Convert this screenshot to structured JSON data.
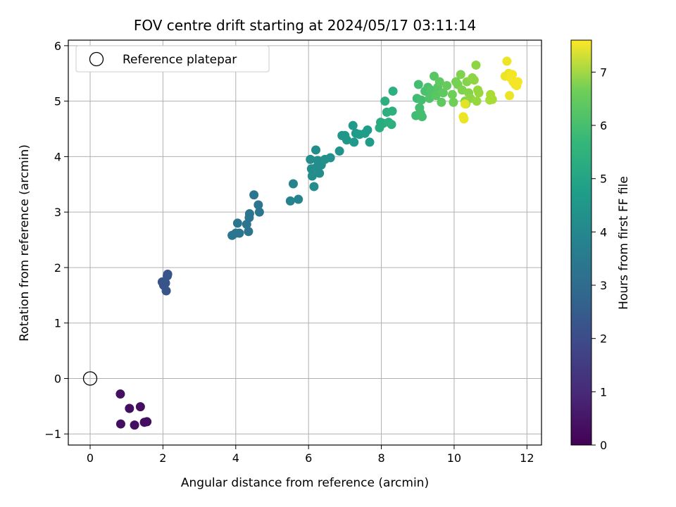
{
  "chart_data": {
    "type": "scatter",
    "title": "FOV centre drift starting at 2024/05/17 03:11:14",
    "xlabel": "Angular distance from reference (arcmin)",
    "ylabel": "Rotation from reference (arcmin)",
    "xlim": [
      -0.6,
      12.4
    ],
    "ylim": [
      -1.2,
      6.1
    ],
    "xticks": [
      "0",
      "2",
      "4",
      "6",
      "8",
      "10",
      "12"
    ],
    "yticks": [
      "−1",
      "0",
      "1",
      "2",
      "3",
      "4",
      "5",
      "6"
    ],
    "grid": true,
    "legend": {
      "placement": "top-left",
      "entries": [
        "Reference platepar"
      ]
    },
    "reference_point": {
      "x": 0,
      "y": 0
    },
    "colorbar": {
      "label": "Hours from first FF file",
      "range": [
        0,
        7.6
      ],
      "ticks": [
        "0",
        "1",
        "2",
        "3",
        "4",
        "5",
        "6",
        "7"
      ],
      "colormap": "viridis"
    },
    "points": [
      {
        "x": 0.83,
        "y": -0.28,
        "h": 0.3
      },
      {
        "x": 0.84,
        "y": -0.82,
        "h": 0.3
      },
      {
        "x": 1.08,
        "y": -0.54,
        "h": 0.3
      },
      {
        "x": 1.22,
        "y": -0.84,
        "h": 0.3
      },
      {
        "x": 1.38,
        "y": -0.51,
        "h": 0.3
      },
      {
        "x": 1.49,
        "y": -0.79,
        "h": 0.3
      },
      {
        "x": 1.56,
        "y": -0.78,
        "h": 0.3
      },
      {
        "x": 1.98,
        "y": 1.74,
        "h": 2.0
      },
      {
        "x": 2.02,
        "y": 1.68,
        "h": 2.0
      },
      {
        "x": 2.07,
        "y": 1.72,
        "h": 2.0
      },
      {
        "x": 2.09,
        "y": 1.58,
        "h": 2.0
      },
      {
        "x": 2.12,
        "y": 1.85,
        "h": 2.0
      },
      {
        "x": 2.13,
        "y": 1.88,
        "h": 2.0
      },
      {
        "x": 3.9,
        "y": 2.58,
        "h": 3.0
      },
      {
        "x": 4.0,
        "y": 2.62,
        "h": 3.0
      },
      {
        "x": 4.05,
        "y": 2.8,
        "h": 3.0
      },
      {
        "x": 4.1,
        "y": 2.62,
        "h": 3.0
      },
      {
        "x": 4.3,
        "y": 2.78,
        "h": 3.0
      },
      {
        "x": 4.35,
        "y": 2.65,
        "h": 3.0
      },
      {
        "x": 4.37,
        "y": 2.9,
        "h": 3.0
      },
      {
        "x": 4.38,
        "y": 2.97,
        "h": 3.0
      },
      {
        "x": 4.5,
        "y": 3.31,
        "h": 3.0
      },
      {
        "x": 4.62,
        "y": 3.13,
        "h": 3.0
      },
      {
        "x": 4.65,
        "y": 3.0,
        "h": 3.0
      },
      {
        "x": 5.5,
        "y": 3.2,
        "h": 3.4
      },
      {
        "x": 5.58,
        "y": 3.51,
        "h": 3.4
      },
      {
        "x": 5.72,
        "y": 3.23,
        "h": 3.4
      },
      {
        "x": 6.05,
        "y": 3.95,
        "h": 3.7
      },
      {
        "x": 6.08,
        "y": 3.78,
        "h": 3.7
      },
      {
        "x": 6.1,
        "y": 3.65,
        "h": 3.7
      },
      {
        "x": 6.15,
        "y": 3.46,
        "h": 3.7
      },
      {
        "x": 6.2,
        "y": 3.8,
        "h": 3.7
      },
      {
        "x": 6.2,
        "y": 4.12,
        "h": 3.7
      },
      {
        "x": 6.25,
        "y": 3.93,
        "h": 3.7
      },
      {
        "x": 6.3,
        "y": 3.7,
        "h": 3.7
      },
      {
        "x": 6.35,
        "y": 3.85,
        "h": 3.7
      },
      {
        "x": 6.45,
        "y": 3.95,
        "h": 3.8
      },
      {
        "x": 6.6,
        "y": 3.98,
        "h": 3.8
      },
      {
        "x": 6.85,
        "y": 4.1,
        "h": 3.9
      },
      {
        "x": 6.92,
        "y": 4.38,
        "h": 4.0
      },
      {
        "x": 7.0,
        "y": 4.38,
        "h": 4.0
      },
      {
        "x": 7.05,
        "y": 4.3,
        "h": 4.0
      },
      {
        "x": 7.22,
        "y": 4.56,
        "h": 4.1
      },
      {
        "x": 7.25,
        "y": 4.26,
        "h": 4.1
      },
      {
        "x": 7.3,
        "y": 4.42,
        "h": 4.1
      },
      {
        "x": 7.4,
        "y": 4.4,
        "h": 4.2
      },
      {
        "x": 7.55,
        "y": 4.42,
        "h": 4.2
      },
      {
        "x": 7.62,
        "y": 4.48,
        "h": 4.2
      },
      {
        "x": 7.68,
        "y": 4.26,
        "h": 4.2
      },
      {
        "x": 7.95,
        "y": 4.52,
        "h": 4.7
      },
      {
        "x": 7.98,
        "y": 4.62,
        "h": 4.7
      },
      {
        "x": 8.05,
        "y": 4.6,
        "h": 4.7
      },
      {
        "x": 8.1,
        "y": 5.0,
        "h": 4.8
      },
      {
        "x": 8.15,
        "y": 4.8,
        "h": 4.8
      },
      {
        "x": 8.2,
        "y": 4.62,
        "h": 4.8
      },
      {
        "x": 8.28,
        "y": 4.58,
        "h": 4.8
      },
      {
        "x": 8.3,
        "y": 4.82,
        "h": 4.8
      },
      {
        "x": 8.32,
        "y": 5.18,
        "h": 4.8
      },
      {
        "x": 8.95,
        "y": 4.74,
        "h": 5.2
      },
      {
        "x": 8.98,
        "y": 5.05,
        "h": 5.2
      },
      {
        "x": 9.02,
        "y": 5.3,
        "h": 5.3
      },
      {
        "x": 9.05,
        "y": 4.88,
        "h": 5.3
      },
      {
        "x": 9.08,
        "y": 4.78,
        "h": 5.3
      },
      {
        "x": 9.1,
        "y": 5.02,
        "h": 5.3
      },
      {
        "x": 9.12,
        "y": 4.72,
        "h": 5.3
      },
      {
        "x": 9.2,
        "y": 5.18,
        "h": 5.4
      },
      {
        "x": 9.28,
        "y": 5.25,
        "h": 5.4
      },
      {
        "x": 9.32,
        "y": 5.05,
        "h": 5.5
      },
      {
        "x": 9.36,
        "y": 5.2,
        "h": 5.5
      },
      {
        "x": 9.45,
        "y": 5.45,
        "h": 5.6
      },
      {
        "x": 9.5,
        "y": 5.1,
        "h": 5.6
      },
      {
        "x": 9.55,
        "y": 5.25,
        "h": 5.6
      },
      {
        "x": 9.6,
        "y": 5.35,
        "h": 5.7
      },
      {
        "x": 9.65,
        "y": 4.98,
        "h": 5.7
      },
      {
        "x": 9.7,
        "y": 5.15,
        "h": 5.7
      },
      {
        "x": 9.8,
        "y": 5.28,
        "h": 5.8
      },
      {
        "x": 9.95,
        "y": 5.12,
        "h": 5.9
      },
      {
        "x": 9.98,
        "y": 4.98,
        "h": 5.9
      },
      {
        "x": 10.05,
        "y": 5.35,
        "h": 6.0
      },
      {
        "x": 10.1,
        "y": 5.3,
        "h": 6.0
      },
      {
        "x": 10.18,
        "y": 5.48,
        "h": 6.1
      },
      {
        "x": 10.22,
        "y": 5.2,
        "h": 6.1
      },
      {
        "x": 10.3,
        "y": 5.0,
        "h": 6.2
      },
      {
        "x": 10.32,
        "y": 4.95,
        "h": 6.2
      },
      {
        "x": 10.35,
        "y": 5.35,
        "h": 6.2
      },
      {
        "x": 10.4,
        "y": 5.15,
        "h": 6.2
      },
      {
        "x": 10.45,
        "y": 5.05,
        "h": 6.3
      },
      {
        "x": 10.5,
        "y": 5.42,
        "h": 6.3
      },
      {
        "x": 10.55,
        "y": 5.38,
        "h": 6.3
      },
      {
        "x": 10.6,
        "y": 5.65,
        "h": 6.3
      },
      {
        "x": 10.62,
        "y": 5.0,
        "h": 6.4
      },
      {
        "x": 10.65,
        "y": 5.2,
        "h": 6.4
      },
      {
        "x": 10.68,
        "y": 5.15,
        "h": 6.4
      },
      {
        "x": 10.98,
        "y": 5.02,
        "h": 6.6
      },
      {
        "x": 11.0,
        "y": 5.12,
        "h": 6.6
      },
      {
        "x": 11.05,
        "y": 5.03,
        "h": 6.6
      },
      {
        "x": 10.25,
        "y": 4.72,
        "h": 7.4
      },
      {
        "x": 10.27,
        "y": 4.68,
        "h": 7.4
      },
      {
        "x": 10.3,
        "y": 4.95,
        "h": 7.3
      },
      {
        "x": 11.4,
        "y": 5.45,
        "h": 7.4
      },
      {
        "x": 11.45,
        "y": 5.72,
        "h": 7.4
      },
      {
        "x": 11.5,
        "y": 5.5,
        "h": 7.4
      },
      {
        "x": 11.52,
        "y": 5.1,
        "h": 7.4
      },
      {
        "x": 11.55,
        "y": 5.42,
        "h": 7.5
      },
      {
        "x": 11.6,
        "y": 5.48,
        "h": 7.5
      },
      {
        "x": 11.62,
        "y": 5.35,
        "h": 7.5
      },
      {
        "x": 11.68,
        "y": 5.3,
        "h": 7.5
      },
      {
        "x": 11.72,
        "y": 5.28,
        "h": 7.5
      },
      {
        "x": 11.75,
        "y": 5.35,
        "h": 7.5
      }
    ]
  }
}
